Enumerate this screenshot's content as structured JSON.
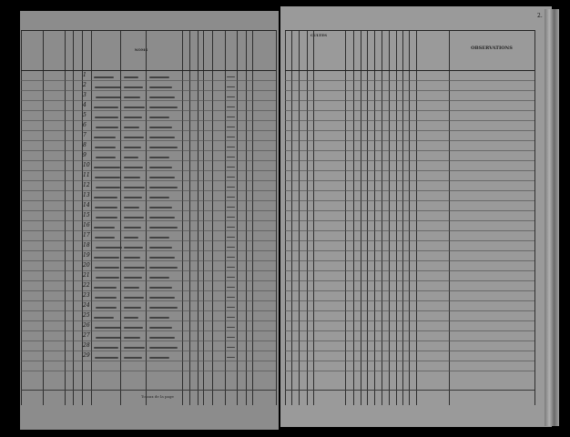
{
  "left_page": {
    "header": {
      "names_col": "NOMS"
    },
    "row_numbers": [
      "1",
      "2",
      "3",
      "4",
      "5",
      "6",
      "7",
      "8",
      "9",
      "10",
      "11",
      "12",
      "13",
      "14",
      "15",
      "16",
      "17",
      "18",
      "19",
      "20",
      "21",
      "22",
      "23",
      "24",
      "25",
      "26",
      "27",
      "28",
      "29"
    ],
    "totals_label": "Totaux de la page"
  },
  "right_page": {
    "page_number": "2.",
    "header": {
      "cults": "CULTES",
      "observations": "OBSERVATIONS"
    }
  }
}
